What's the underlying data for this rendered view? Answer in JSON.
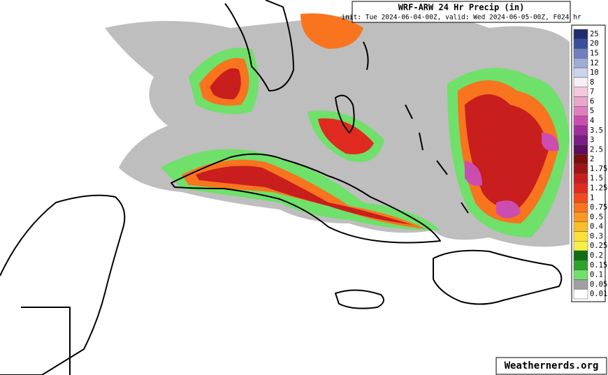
{
  "title": "WRF-ARW 24 Hr Precip (in)",
  "subtitle": "init: Tue 2024-06-04-00Z, valid: Wed 2024-06-05-00Z, F024 hr",
  "watermark": "Weathernerds.org",
  "legend": [
    {
      "label": 25,
      "color": "#1f2f6e"
    },
    {
      "label": 20,
      "color": "#3a4f9a"
    },
    {
      "label": 15,
      "color": "#6f7fbf"
    },
    {
      "label": 12,
      "color": "#a0abd6"
    },
    {
      "label": 10,
      "color": "#cdd3ea"
    },
    {
      "label": 8,
      "color": "#f6f0f5"
    },
    {
      "label": 7,
      "color": "#f3c9dd"
    },
    {
      "label": 6,
      "color": "#eaa6cc"
    },
    {
      "label": 5,
      "color": "#df7fc0"
    },
    {
      "label": 4,
      "color": "#cc4db0"
    },
    {
      "label": 3.5,
      "color": "#a0309a"
    },
    {
      "label": 3,
      "color": "#7a1e84"
    },
    {
      "label": 2.5,
      "color": "#5c0f5e"
    },
    {
      "label": 2,
      "color": "#7a0f0f"
    },
    {
      "label": 1.75,
      "color": "#a01414"
    },
    {
      "label": 1.5,
      "color": "#c81e1e"
    },
    {
      "label": 1.25,
      "color": "#e02a1f"
    },
    {
      "label": 1,
      "color": "#f04a1e"
    },
    {
      "label": 0.75,
      "color": "#f8741e"
    },
    {
      "label": 0.5,
      "color": "#fa9a22"
    },
    {
      "label": 0.4,
      "color": "#fbbd2a"
    },
    {
      "label": 0.3,
      "color": "#fde13a"
    },
    {
      "label": 0.25,
      "color": "#f5f04a"
    },
    {
      "label": 0.2,
      "color": "#0e6e14"
    },
    {
      "label": 0.15,
      "color": "#2aa52a"
    },
    {
      "label": 0.1,
      "color": "#6fe06a"
    },
    {
      "label": 0.05,
      "color": "#a0a0a0"
    },
    {
      "label": 0.01,
      "color": "#ffffff"
    }
  ]
}
